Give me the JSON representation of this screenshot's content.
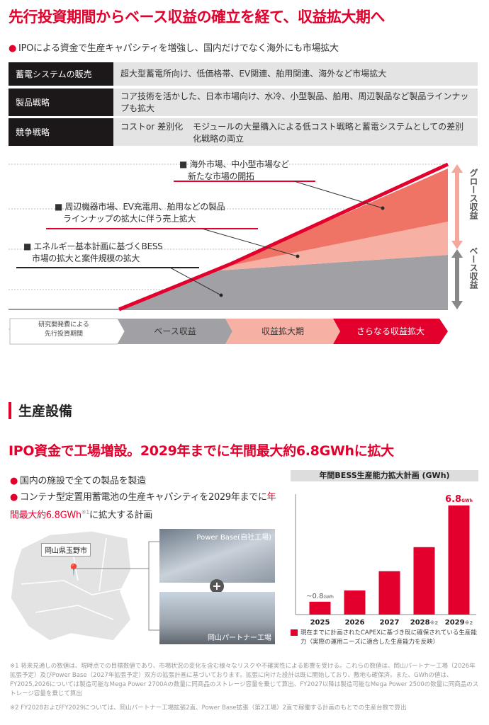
{
  "title": "先行投資期間からベース収益の確立を経て、収益拡大期へ",
  "bullet_main": "IPOによる資金で生産キャパシティを増強し、国内だけでなく海外にも市場拡大",
  "strategy_table": [
    {
      "label": "蓄電システムの販売",
      "value": "超大型蓄電所向け、低価格帯、EV関連、舶用関連、海外など市場拡大"
    },
    {
      "label": "製品戦略",
      "value": "コア技術を活かした、日本市場向け、水冷、小型製品、舶用、周辺製品など製品ラインナップも拡大"
    },
    {
      "label": "競争戦略",
      "value_prefix": "コストor 差別化",
      "value": "モジュールの大量購入による低コスト戦略と蓄電システムとしての差別化戦略の両立"
    }
  ],
  "growth_chart": {
    "notes": [
      {
        "line1": "■ 海外市場、中小型市場など",
        "line2": "新たな市場の開拓"
      },
      {
        "line1": "■ 周辺機器市場、EV充電用、舶用などの製品",
        "line2": "ラインナップの拡大に伴う売上拡大"
      },
      {
        "line1": "■ エネルギー基本計画に基づくBESS",
        "line2": "市場の拡大と案件規模の拡大"
      }
    ],
    "growth_label": "グロース収益",
    "base_label": "ベース収益",
    "colors": {
      "base": "#a0a0a5",
      "light": "#f7b1a4",
      "mid": "#ef7466",
      "top": "#e3002d"
    }
  },
  "phases": [
    {
      "line1": "研究開発費による",
      "line2": "先行投資期間"
    },
    {
      "label": "ベース収益"
    },
    {
      "label": "収益拡大期"
    },
    {
      "label": "さらなる収益拡大"
    }
  ],
  "section_title": "生産設備",
  "subtitle": "IPO資金で工場増設。2029年までに年間最大約6.8GWhに拡大",
  "bullets": {
    "b1": "国内の施設で全ての製品を製造",
    "b2_a": "コンテナ型定置用蓄電池の生産キャパシティを2029年までに",
    "b2_highlight": "年間最大約6.8GWh",
    "b2_sup": "※1",
    "b2_b": "に拡大する計画"
  },
  "map": {
    "location": "岡山県玉野市"
  },
  "photos": {
    "top": "Power Base(自社工場)",
    "bottom": "岡山パートナー工場"
  },
  "chart_data": {
    "type": "bar",
    "title": "年間BESS生産能力拡大計画 (GWh)",
    "categories": [
      "2025",
      "2026",
      "2027",
      "2028",
      "2029"
    ],
    "category_notes": [
      "",
      "",
      "",
      "※2",
      "※2"
    ],
    "values": [
      0.8,
      1.5,
      2.7,
      4.2,
      6.8
    ],
    "data_labels": [
      {
        "index": 0,
        "text": "~0.8",
        "unit": "GWh"
      },
      {
        "index": 4,
        "text": "6.8",
        "unit": "GWh"
      }
    ],
    "ylim": [
      0,
      7.5
    ],
    "legend": "現在までに計画されたCAPEXに基づき既に確保されている生産能力（実際の運用ニーズに適合した生産能力を反映）",
    "color": "#e3002d"
  },
  "footnotes": [
    "※1 将来見通しの数値は、現時点での目標数値であり、市場状況の変化を含む様々なリスクや不確実性による影響を受ける。これらの数値は、岡山パートナー工場（2026年拡張予定）及びPower Base（2027年拡張予定）双方の拡張計画に基づいております。拡張に向けた設計は既に開始しており、敷地も確保済。また、GWhの値は、FY2025,2026については製造可能なMega Power 2700Aの数量に同商品のストレージ容量を乗じて算出、FY2027以降は製造可能なMega Power 2500の数量に同商品のストレージ容量を乗じて算出",
    "※2 FY2028およびFY2029については、岡山パートナー工場拡張2直、Power Base拡張（第2工場）2直で稼働する計画のもとでの生産台数で算出"
  ]
}
